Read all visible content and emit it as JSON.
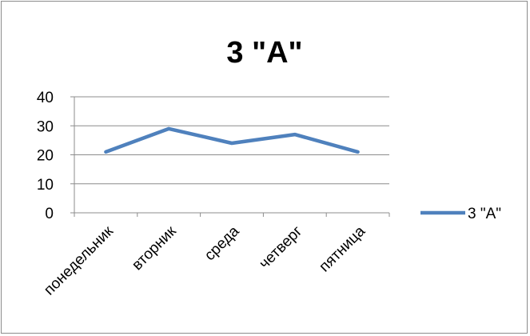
{
  "chart_data": {
    "type": "line",
    "title": "3 \"А\"",
    "categories": [
      "понедельник",
      "вторник",
      "среда",
      "четверг",
      "пятница"
    ],
    "series": [
      {
        "name": "3 \"А\"",
        "values": [
          21,
          29,
          24,
          27,
          21
        ],
        "color": "#4f81bd"
      }
    ],
    "ylim": [
      0,
      40
    ],
    "yticks": [
      0,
      10,
      20,
      30,
      40
    ],
    "grid": true,
    "legend": "right",
    "xlabel": "",
    "ylabel": ""
  }
}
